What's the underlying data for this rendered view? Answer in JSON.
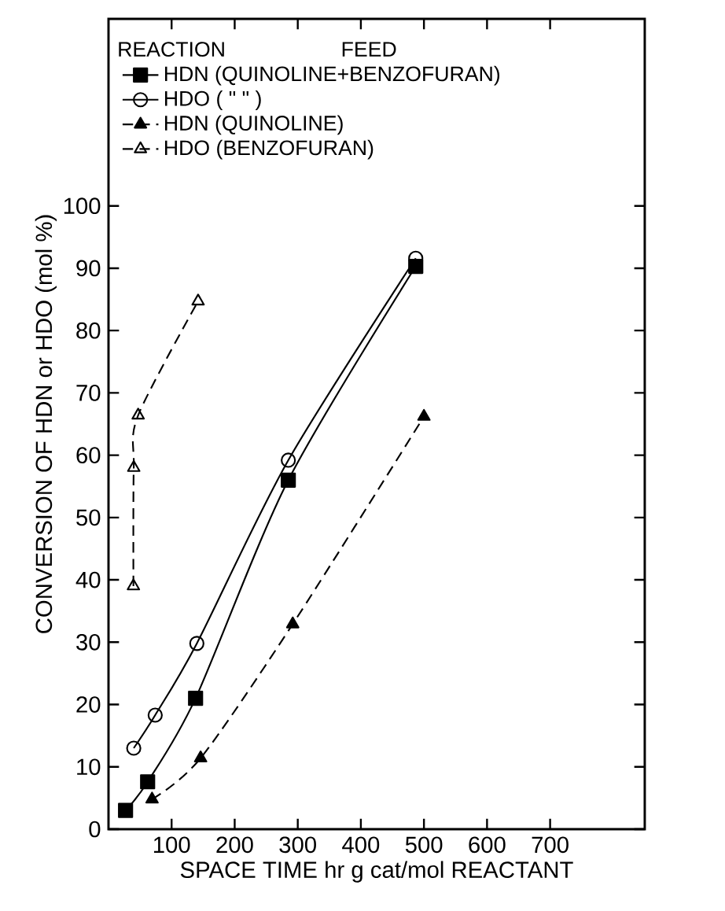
{
  "chart_data": {
    "type": "line",
    "xlabel": "SPACE TIME hr g cat/mol REACTANT",
    "ylabel": "CONVERSION OF HDN or HDO (mol %)",
    "legend_title": "REACTION",
    "annotations": [
      "FEED"
    ],
    "xlim": [
      0,
      850
    ],
    "ylim": [
      0,
      130
    ],
    "xticks": [
      100,
      200,
      300,
      400,
      500,
      600,
      700
    ],
    "yticks": [
      0,
      10,
      20,
      30,
      40,
      50,
      60,
      70,
      80,
      90,
      100
    ],
    "grid": false,
    "legend": "top left",
    "series": [
      {
        "name": "HDN (QUINOLINE+BENZOFURAN)",
        "color": "#000000",
        "marker": "square",
        "line_style": "solid",
        "x": [
          27,
          62,
          138,
          285,
          487
        ],
        "values": [
          3,
          7.6,
          21,
          56,
          90.3
        ]
      },
      {
        "name": "HDO ( \" \" )",
        "color": "#000000",
        "marker": "circle",
        "line_style": "solid",
        "x": [
          40,
          74,
          140,
          285,
          487
        ],
        "values": [
          13,
          18.3,
          29.8,
          59.2,
          91.6
        ]
      },
      {
        "name": "HDN (QUINOLINE)",
        "color": "#000000",
        "marker": "triangle",
        "line_style": "dashed",
        "x": [
          69,
          146,
          292,
          500
        ],
        "values": [
          4.8,
          11.4,
          32.9,
          66.2
        ]
      },
      {
        "name": "HDO (BENZOFURAN)",
        "color": "#000000",
        "marker": "triangle",
        "line_style": "dashed",
        "x": [
          39.5,
          40,
          47,
          142
        ],
        "values": [
          39,
          58,
          66.4,
          84.7
        ]
      }
    ]
  }
}
